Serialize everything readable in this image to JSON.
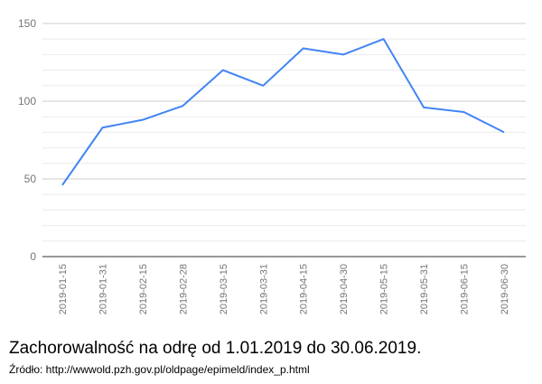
{
  "chart_data": {
    "type": "line",
    "categories": [
      "2019-01-15",
      "2019-01-31",
      "2019-02-15",
      "2019-02-28",
      "2019-03-15",
      "2019-03-31",
      "2019-04-15",
      "2019-04-30",
      "2019-05-15",
      "2019-05-31",
      "2019-06-15",
      "2019-06-30"
    ],
    "values": [
      46,
      83,
      88,
      97,
      120,
      110,
      134,
      130,
      140,
      96,
      93,
      80
    ],
    "ylim": [
      0,
      150
    ],
    "y_ticks": [
      0,
      50,
      100,
      150
    ],
    "grid": true,
    "line_color": "#4285f4",
    "grid_color": "#e0e0e0",
    "axis_color": "#333333",
    "tick_label_color": "#757575"
  },
  "caption": {
    "title": "Zachorowalność na odrę od 1.01.2019 do 30.06.2019.",
    "source": "Źródło: http://wwwold.pzh.gov.pl/oldpage/epimeld/index_p.html"
  }
}
